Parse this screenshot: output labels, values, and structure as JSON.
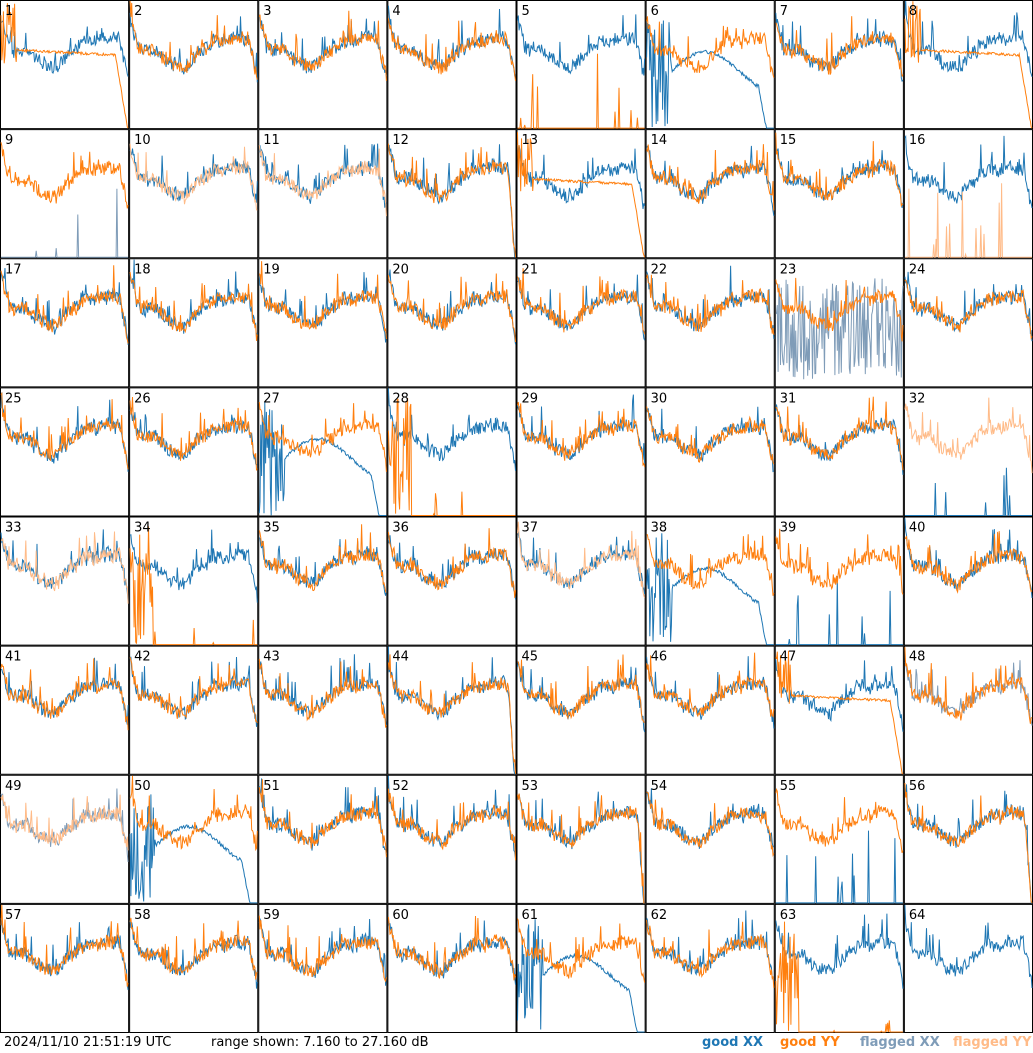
{
  "chart_data": {
    "type": "line",
    "title": "",
    "timestamp": "2024/11/10 21:51:19 UTC",
    "range_text": "range shown: 7.160 to 27.160 dB",
    "ylim": [
      7.16,
      27.16
    ],
    "yunit": "dB",
    "grid": false,
    "legend_position": "bottom-right",
    "legend": [
      {
        "key": "good_xx",
        "label": "good XX",
        "color": "#1f77b4"
      },
      {
        "key": "good_yy",
        "label": "good YY",
        "color": "#ff7f0e"
      },
      {
        "key": "flagged_xx",
        "label": "flagged XX",
        "color": "#7f9cb8"
      },
      {
        "key": "flagged_yy",
        "label": "flagged YY",
        "color": "#ffbb88"
      }
    ],
    "panels": [
      {
        "id": 1,
        "label": "1",
        "xx": "good",
        "yy": "good",
        "pattern": "yy-decay"
      },
      {
        "id": 2,
        "label": "2",
        "xx": "good",
        "yy": "good",
        "pattern": "normal"
      },
      {
        "id": 3,
        "label": "3",
        "xx": "good",
        "yy": "good",
        "pattern": "normal"
      },
      {
        "id": 4,
        "label": "4",
        "xx": "good",
        "yy": "good",
        "pattern": "normal"
      },
      {
        "id": 5,
        "label": "5",
        "xx": "good",
        "yy": "good",
        "pattern": "yy-spikes"
      },
      {
        "id": 6,
        "label": "6",
        "xx": "good",
        "yy": "good",
        "pattern": "xx-decay"
      },
      {
        "id": 7,
        "label": "7",
        "xx": "good",
        "yy": "good",
        "pattern": "normal"
      },
      {
        "id": 8,
        "label": "8",
        "xx": "good",
        "yy": "good",
        "pattern": "yy-decay"
      },
      {
        "id": 9,
        "label": "9",
        "xx": "flagged",
        "yy": "good",
        "pattern": "xx-spikes"
      },
      {
        "id": 10,
        "label": "10",
        "xx": "good",
        "yy": "flagged",
        "pattern": "normal"
      },
      {
        "id": 11,
        "label": "11",
        "xx": "good",
        "yy": "flagged",
        "pattern": "normal"
      },
      {
        "id": 12,
        "label": "12",
        "xx": "good",
        "yy": "good",
        "pattern": "both-dip"
      },
      {
        "id": 13,
        "label": "13",
        "xx": "good",
        "yy": "good",
        "pattern": "yy-decay"
      },
      {
        "id": 14,
        "label": "14",
        "xx": "good",
        "yy": "good",
        "pattern": "normal"
      },
      {
        "id": 15,
        "label": "15",
        "xx": "good",
        "yy": "good",
        "pattern": "normal"
      },
      {
        "id": 16,
        "label": "16",
        "xx": "good",
        "yy": "flagged",
        "pattern": "yy-spikes"
      },
      {
        "id": 17,
        "label": "17",
        "xx": "good",
        "yy": "good",
        "pattern": "normal"
      },
      {
        "id": 18,
        "label": "18",
        "xx": "good",
        "yy": "good",
        "pattern": "normal"
      },
      {
        "id": 19,
        "label": "19",
        "xx": "good",
        "yy": "good",
        "pattern": "normal"
      },
      {
        "id": 20,
        "label": "20",
        "xx": "good",
        "yy": "good",
        "pattern": "normal"
      },
      {
        "id": 21,
        "label": "21",
        "xx": "good",
        "yy": "good",
        "pattern": "normal"
      },
      {
        "id": 22,
        "label": "22",
        "xx": "good",
        "yy": "good",
        "pattern": "normal"
      },
      {
        "id": 23,
        "label": "23",
        "xx": "flagged",
        "yy": "good",
        "pattern": "xx-noise"
      },
      {
        "id": 24,
        "label": "24",
        "xx": "good",
        "yy": "good",
        "pattern": "normal"
      },
      {
        "id": 25,
        "label": "25",
        "xx": "good",
        "yy": "good",
        "pattern": "normal"
      },
      {
        "id": 26,
        "label": "26",
        "xx": "good",
        "yy": "good",
        "pattern": "normal"
      },
      {
        "id": 27,
        "label": "27",
        "xx": "good",
        "yy": "good",
        "pattern": "xx-decay"
      },
      {
        "id": 28,
        "label": "28",
        "xx": "good",
        "yy": "good",
        "pattern": "yy-dead"
      },
      {
        "id": 29,
        "label": "29",
        "xx": "good",
        "yy": "good",
        "pattern": "normal"
      },
      {
        "id": 30,
        "label": "30",
        "xx": "good",
        "yy": "good",
        "pattern": "normal"
      },
      {
        "id": 31,
        "label": "31",
        "xx": "good",
        "yy": "good",
        "pattern": "normal"
      },
      {
        "id": 32,
        "label": "32",
        "xx": "good",
        "yy": "flagged",
        "pattern": "xx-spikes"
      },
      {
        "id": 33,
        "label": "33",
        "xx": "good",
        "yy": "flagged",
        "pattern": "normal"
      },
      {
        "id": 34,
        "label": "34",
        "xx": "good",
        "yy": "good",
        "pattern": "yy-dead"
      },
      {
        "id": 35,
        "label": "35",
        "xx": "good",
        "yy": "good",
        "pattern": "normal"
      },
      {
        "id": 36,
        "label": "36",
        "xx": "good",
        "yy": "good",
        "pattern": "normal"
      },
      {
        "id": 37,
        "label": "37",
        "xx": "good",
        "yy": "flagged",
        "pattern": "normal"
      },
      {
        "id": 38,
        "label": "38",
        "xx": "good",
        "yy": "good",
        "pattern": "xx-decay"
      },
      {
        "id": 39,
        "label": "39",
        "xx": "good",
        "yy": "good",
        "pattern": "xx-spikes"
      },
      {
        "id": 40,
        "label": "40",
        "xx": "good",
        "yy": "good",
        "pattern": "normal"
      },
      {
        "id": 41,
        "label": "41",
        "xx": "good",
        "yy": "good",
        "pattern": "normal"
      },
      {
        "id": 42,
        "label": "42",
        "xx": "good",
        "yy": "good",
        "pattern": "normal"
      },
      {
        "id": 43,
        "label": "43",
        "xx": "good",
        "yy": "good",
        "pattern": "normal"
      },
      {
        "id": 44,
        "label": "44",
        "xx": "good",
        "yy": "good",
        "pattern": "both-dip"
      },
      {
        "id": 45,
        "label": "45",
        "xx": "good",
        "yy": "good",
        "pattern": "normal"
      },
      {
        "id": 46,
        "label": "46",
        "xx": "good",
        "yy": "good",
        "pattern": "normal"
      },
      {
        "id": 47,
        "label": "47",
        "xx": "good",
        "yy": "good",
        "pattern": "yy-decay"
      },
      {
        "id": 48,
        "label": "48",
        "xx": "flagged",
        "yy": "good",
        "pattern": "normal"
      },
      {
        "id": 49,
        "label": "49",
        "xx": "flagged",
        "yy": "flagged",
        "pattern": "normal"
      },
      {
        "id": 50,
        "label": "50",
        "xx": "good",
        "yy": "good",
        "pattern": "xx-decay"
      },
      {
        "id": 51,
        "label": "51",
        "xx": "good",
        "yy": "good",
        "pattern": "normal"
      },
      {
        "id": 52,
        "label": "52",
        "xx": "good",
        "yy": "good",
        "pattern": "normal"
      },
      {
        "id": 53,
        "label": "53",
        "xx": "good",
        "yy": "good",
        "pattern": "both-dip"
      },
      {
        "id": 54,
        "label": "54",
        "xx": "good",
        "yy": "good",
        "pattern": "normal"
      },
      {
        "id": 55,
        "label": "55",
        "xx": "good",
        "yy": "good",
        "pattern": "xx-spikes"
      },
      {
        "id": 56,
        "label": "56",
        "xx": "good",
        "yy": "good",
        "pattern": "both-dip"
      },
      {
        "id": 57,
        "label": "57",
        "xx": "good",
        "yy": "good",
        "pattern": "normal"
      },
      {
        "id": 58,
        "label": "58",
        "xx": "good",
        "yy": "good",
        "pattern": "normal"
      },
      {
        "id": 59,
        "label": "59",
        "xx": "good",
        "yy": "good",
        "pattern": "normal"
      },
      {
        "id": 60,
        "label": "60",
        "xx": "good",
        "yy": "good",
        "pattern": "normal"
      },
      {
        "id": 61,
        "label": "61",
        "xx": "good",
        "yy": "good",
        "pattern": "xx-decay"
      },
      {
        "id": 62,
        "label": "62",
        "xx": "good",
        "yy": "good",
        "pattern": "normal"
      },
      {
        "id": 63,
        "label": "63",
        "xx": "good",
        "yy": "good",
        "pattern": "yy-dead"
      },
      {
        "id": 64,
        "label": "64",
        "xx": "good",
        "yy": "none",
        "pattern": "normal"
      }
    ]
  },
  "footer": {
    "timestamp": "2024/11/10 21:51:19 UTC",
    "range": "range shown: 7.160 to 27.160 dB",
    "legend_good_xx": "good XX",
    "legend_good_yy": "good YY",
    "legend_flagged_xx": "flagged XX",
    "legend_flagged_yy": "flagged YY"
  }
}
